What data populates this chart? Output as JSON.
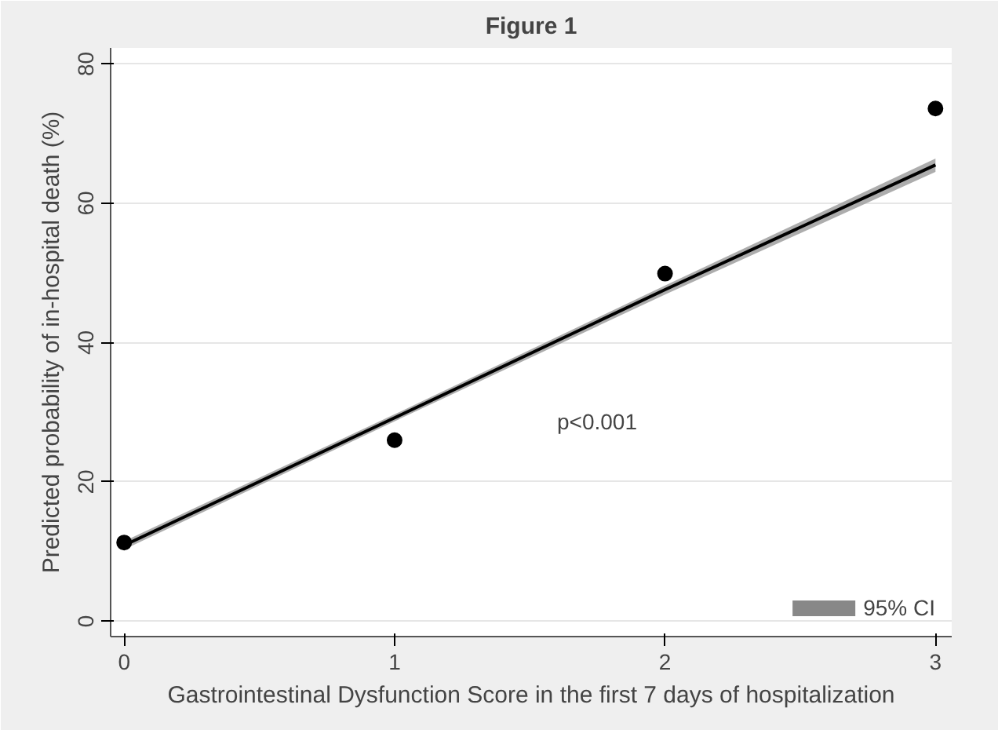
{
  "chart_data": {
    "type": "scatter",
    "title": "Figure 1",
    "xlabel": "Gastrointestinal Dysfunction Score in the first 7 days of hospitalization",
    "ylabel": "Predicted probability of in-hospital death (%)",
    "series": [
      {
        "type": "line",
        "name": "95% CI",
        "color": "#000000",
        "marker": "none",
        "x": [
          0,
          1,
          2,
          3
        ],
        "values": [
          10.9,
          29.2,
          47.6,
          65.5
        ],
        "lower": [
          10.3,
          28.7,
          46.9,
          64.5
        ],
        "upper": [
          11.5,
          29.7,
          48.2,
          66.4
        ]
      },
      {
        "color": "#000000",
        "x": [
          0,
          1,
          2,
          3
        ],
        "values": [
          11.3,
          26.0,
          49.9,
          73.6
        ]
      }
    ],
    "annotations": [
      "p<0.001"
    ],
    "xlim": [
      -0.05,
      3.06
    ],
    "ylim": [
      -2.2,
      82.3
    ],
    "xticks": [
      0,
      1,
      2,
      3
    ],
    "yticks": [
      0,
      20,
      40,
      60,
      80
    ],
    "grid": "y",
    "legend": "bottom right",
    "marker": "circle",
    "line_style": "solid"
  }
}
